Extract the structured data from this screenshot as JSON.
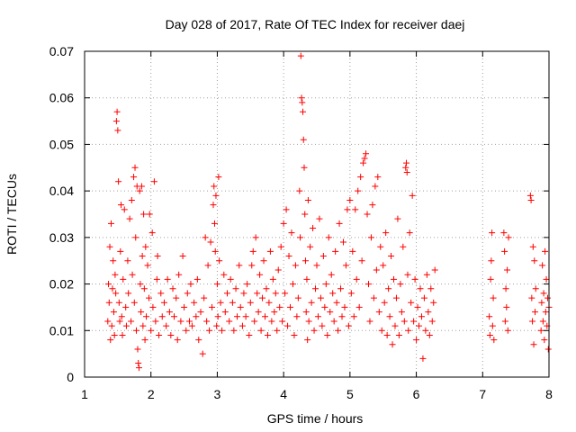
{
  "chart_data": {
    "type": "scatter",
    "title": "Day 028 of 2017, Rate Of TEC Index for receiver daej",
    "xlabel": "GPS time / hours",
    "ylabel": "ROTI / TECUs",
    "xlim": [
      1,
      8
    ],
    "ylim": [
      0,
      0.07
    ],
    "x_ticks": [
      "1",
      "2",
      "3",
      "4",
      "5",
      "6",
      "7",
      "8"
    ],
    "y_ticks": [
      "0",
      "0.01",
      "0.02",
      "0.03",
      "0.04",
      "0.05",
      "0.06",
      "0.07"
    ],
    "grid": true,
    "marker": "+",
    "color": "#ff0000",
    "series": [
      {
        "points": [
          [
            1.35,
            0.012
          ],
          [
            1.36,
            0.02
          ],
          [
            1.37,
            0.016
          ],
          [
            1.38,
            0.028
          ],
          [
            1.39,
            0.008
          ],
          [
            1.4,
            0.033
          ],
          [
            1.41,
            0.011
          ],
          [
            1.42,
            0.019
          ],
          [
            1.43,
            0.025
          ],
          [
            1.44,
            0.014
          ],
          [
            1.45,
            0.009
          ],
          [
            1.46,
            0.022
          ],
          [
            1.47,
            0.018
          ],
          [
            1.48,
            0.055
          ],
          [
            1.49,
            0.057
          ],
          [
            1.5,
            0.053
          ],
          [
            1.51,
            0.042
          ],
          [
            1.52,
            0.016
          ],
          [
            1.53,
            0.012
          ],
          [
            1.54,
            0.027
          ],
          [
            1.55,
            0.037
          ],
          [
            1.56,
            0.013
          ],
          [
            1.57,
            0.009
          ],
          [
            1.58,
            0.021
          ],
          [
            1.6,
            0.036
          ],
          [
            1.62,
            0.015
          ],
          [
            1.63,
            0.011
          ],
          [
            1.65,
            0.025
          ],
          [
            1.66,
            0.018
          ],
          [
            1.68,
            0.034
          ],
          [
            1.7,
            0.012
          ],
          [
            1.71,
            0.038
          ],
          [
            1.72,
            0.022
          ],
          [
            1.74,
            0.043
          ],
          [
            1.75,
            0.016
          ],
          [
            1.76,
            0.045
          ],
          [
            1.77,
            0.03
          ],
          [
            1.78,
            0.01
          ],
          [
            1.79,
            0.041
          ],
          [
            1.8,
            0.006
          ],
          [
            1.81,
            0.003
          ],
          [
            1.82,
            0.002
          ],
          [
            1.83,
            0.04
          ],
          [
            1.84,
            0.02
          ],
          [
            1.85,
            0.014
          ],
          [
            1.86,
            0.041
          ],
          [
            1.87,
            0.026
          ],
          [
            1.88,
            0.011
          ],
          [
            1.89,
            0.035
          ],
          [
            1.9,
            0.019
          ],
          [
            1.91,
            0.008
          ],
          [
            1.92,
            0.028
          ],
          [
            1.93,
            0.013
          ],
          [
            1.95,
            0.024
          ],
          [
            1.97,
            0.017
          ],
          [
            1.98,
            0.035
          ],
          [
            2.0,
            0.01
          ],
          [
            2.02,
            0.031
          ],
          [
            2.03,
            0.015
          ],
          [
            2.05,
            0.042
          ],
          [
            2.07,
            0.012
          ],
          [
            2.09,
            0.021
          ],
          [
            2.1,
            0.026
          ],
          [
            2.12,
            0.009
          ],
          [
            2.15,
            0.018
          ],
          [
            2.17,
            0.013
          ],
          [
            2.2,
            0.016
          ],
          [
            2.23,
            0.011
          ],
          [
            2.25,
            0.021
          ],
          [
            2.28,
            0.014
          ],
          [
            2.3,
            0.009
          ],
          [
            2.33,
            0.019
          ],
          [
            2.35,
            0.013
          ],
          [
            2.38,
            0.017
          ],
          [
            2.4,
            0.008
          ],
          [
            2.42,
            0.022
          ],
          [
            2.45,
            0.012
          ],
          [
            2.48,
            0.026
          ],
          [
            2.5,
            0.015
          ],
          [
            2.53,
            0.01
          ],
          [
            2.55,
            0.018
          ],
          [
            2.58,
            0.012
          ],
          [
            2.6,
            0.02
          ],
          [
            2.62,
            0.011
          ],
          [
            2.65,
            0.016
          ],
          [
            2.68,
            0.013
          ],
          [
            2.7,
            0.021
          ],
          [
            2.72,
            0.008
          ],
          [
            2.75,
            0.014
          ],
          [
            2.78,
            0.005
          ],
          [
            2.8,
            0.017
          ],
          [
            2.82,
            0.03
          ],
          [
            2.84,
            0.012
          ],
          [
            2.86,
            0.024
          ],
          [
            2.88,
            0.01
          ],
          [
            2.9,
            0.029
          ],
          [
            2.92,
            0.015
          ],
          [
            2.94,
            0.037
          ],
          [
            2.95,
            0.041
          ],
          [
            2.96,
            0.033
          ],
          [
            2.97,
            0.027
          ],
          [
            2.98,
            0.039
          ],
          [
            2.99,
            0.011
          ],
          [
            3.0,
            0.02
          ],
          [
            3.01,
            0.013
          ],
          [
            3.02,
            0.043
          ],
          [
            3.03,
            0.025
          ],
          [
            3.05,
            0.016
          ],
          [
            3.07,
            0.01
          ],
          [
            3.1,
            0.022
          ],
          [
            3.12,
            0.014
          ],
          [
            3.15,
            0.018
          ],
          [
            3.18,
            0.012
          ],
          [
            3.2,
            0.021
          ],
          [
            3.23,
            0.016
          ],
          [
            3.25,
            0.01
          ],
          [
            3.28,
            0.019
          ],
          [
            3.3,
            0.013
          ],
          [
            3.33,
            0.024
          ],
          [
            3.35,
            0.015
          ],
          [
            3.38,
            0.011
          ],
          [
            3.4,
            0.018
          ],
          [
            3.43,
            0.013
          ],
          [
            3.45,
            0.02
          ],
          [
            3.48,
            0.009
          ],
          [
            3.5,
            0.016
          ],
          [
            3.52,
            0.024
          ],
          [
            3.54,
            0.027
          ],
          [
            3.56,
            0.012
          ],
          [
            3.58,
            0.03
          ],
          [
            3.6,
            0.018
          ],
          [
            3.62,
            0.014
          ],
          [
            3.64,
            0.022
          ],
          [
            3.66,
            0.01
          ],
          [
            3.68,
            0.017
          ],
          [
            3.7,
            0.025
          ],
          [
            3.72,
            0.013
          ],
          [
            3.74,
            0.019
          ],
          [
            3.76,
            0.009
          ],
          [
            3.78,
            0.016
          ],
          [
            3.8,
            0.027
          ],
          [
            3.82,
            0.012
          ],
          [
            3.84,
            0.021
          ],
          [
            3.86,
            0.014
          ],
          [
            3.88,
            0.018
          ],
          [
            3.9,
            0.01
          ],
          [
            3.92,
            0.023
          ],
          [
            3.94,
            0.015
          ],
          [
            3.96,
            0.028
          ],
          [
            3.98,
            0.012
          ],
          [
            4.0,
            0.033
          ],
          [
            4.02,
            0.018
          ],
          [
            4.04,
            0.036
          ],
          [
            4.06,
            0.011
          ],
          [
            4.08,
            0.026
          ],
          [
            4.1,
            0.015
          ],
          [
            4.12,
            0.031
          ],
          [
            4.14,
            0.02
          ],
          [
            4.16,
            0.009
          ],
          [
            4.18,
            0.024
          ],
          [
            4.2,
            0.013
          ],
          [
            4.22,
            0.017
          ],
          [
            4.24,
            0.04
          ],
          [
            4.25,
            0.03
          ],
          [
            4.26,
            0.069
          ],
          [
            4.27,
            0.06
          ],
          [
            4.28,
            0.059
          ],
          [
            4.29,
            0.057
          ],
          [
            4.3,
            0.051
          ],
          [
            4.31,
            0.045
          ],
          [
            4.32,
            0.035
          ],
          [
            4.33,
            0.025
          ],
          [
            4.34,
            0.014
          ],
          [
            4.35,
            0.021
          ],
          [
            4.36,
            0.008
          ],
          [
            4.37,
            0.038
          ],
          [
            4.38,
            0.012
          ],
          [
            4.4,
            0.028
          ],
          [
            4.42,
            0.016
          ],
          [
            4.44,
            0.032
          ],
          [
            4.46,
            0.01
          ],
          [
            4.48,
            0.019
          ],
          [
            4.5,
            0.024
          ],
          [
            4.52,
            0.013
          ],
          [
            4.54,
            0.034
          ],
          [
            4.56,
            0.017
          ],
          [
            4.58,
            0.011
          ],
          [
            4.6,
            0.026
          ],
          [
            4.62,
            0.015
          ],
          [
            4.64,
            0.02
          ],
          [
            4.66,
            0.009
          ],
          [
            4.68,
            0.03
          ],
          [
            4.7,
            0.014
          ],
          [
            4.72,
            0.022
          ],
          [
            4.74,
            0.018
          ],
          [
            4.76,
            0.012
          ],
          [
            4.78,
            0.027
          ],
          [
            4.8,
            0.016
          ],
          [
            4.82,
            0.01
          ],
          [
            4.84,
            0.033
          ],
          [
            4.86,
            0.019
          ],
          [
            4.88,
            0.013
          ],
          [
            4.9,
            0.029
          ],
          [
            4.92,
            0.015
          ],
          [
            4.94,
            0.024
          ],
          [
            4.96,
            0.036
          ],
          [
            4.98,
            0.011
          ],
          [
            5.0,
            0.038
          ],
          [
            5.02,
            0.018
          ],
          [
            5.04,
            0.027
          ],
          [
            5.06,
            0.013
          ],
          [
            5.08,
            0.036
          ],
          [
            5.1,
            0.021
          ],
          [
            5.12,
            0.04
          ],
          [
            5.14,
            0.015
          ],
          [
            5.16,
            0.043
          ],
          [
            5.18,
            0.025
          ],
          [
            5.2,
            0.046
          ],
          [
            5.22,
            0.047
          ],
          [
            5.24,
            0.048
          ],
          [
            5.26,
            0.035
          ],
          [
            5.28,
            0.02
          ],
          [
            5.3,
            0.012
          ],
          [
            5.32,
            0.03
          ],
          [
            5.34,
            0.037
          ],
          [
            5.36,
            0.017
          ],
          [
            5.38,
            0.041
          ],
          [
            5.4,
            0.023
          ],
          [
            5.42,
            0.043
          ],
          [
            5.44,
            0.014
          ],
          [
            5.46,
            0.028
          ],
          [
            5.48,
            0.01
          ],
          [
            5.5,
            0.024
          ],
          [
            5.52,
            0.016
          ],
          [
            5.54,
            0.031
          ],
          [
            5.56,
            0.009
          ],
          [
            5.58,
            0.019
          ],
          [
            5.6,
            0.013
          ],
          [
            5.62,
            0.026
          ],
          [
            5.64,
            0.007
          ],
          [
            5.66,
            0.021
          ],
          [
            5.68,
            0.011
          ],
          [
            5.7,
            0.017
          ],
          [
            5.72,
            0.034
          ],
          [
            5.74,
            0.009
          ],
          [
            5.76,
            0.02
          ],
          [
            5.78,
            0.014
          ],
          [
            5.8,
            0.028
          ],
          [
            5.82,
            0.012
          ],
          [
            5.84,
            0.045
          ],
          [
            5.85,
            0.046
          ],
          [
            5.86,
            0.044
          ],
          [
            5.87,
            0.022
          ],
          [
            5.88,
            0.01
          ],
          [
            5.9,
            0.031
          ],
          [
            5.92,
            0.016
          ],
          [
            5.94,
            0.039
          ],
          [
            5.96,
            0.012
          ],
          [
            5.98,
            0.021
          ],
          [
            6.0,
            0.008
          ],
          [
            6.02,
            0.015
          ],
          [
            6.04,
            0.011
          ],
          [
            6.06,
            0.019
          ],
          [
            6.08,
            0.013
          ],
          [
            6.1,
            0.004
          ],
          [
            6.12,
            0.017
          ],
          [
            6.14,
            0.01
          ],
          [
            6.16,
            0.022
          ],
          [
            6.18,
            0.014
          ],
          [
            6.2,
            0.009
          ],
          [
            6.22,
            0.019
          ],
          [
            6.24,
            0.012
          ],
          [
            6.26,
            0.016
          ],
          [
            6.28,
            0.023
          ],
          [
            7.1,
            0.013
          ],
          [
            7.11,
            0.009
          ],
          [
            7.12,
            0.021
          ],
          [
            7.13,
            0.025
          ],
          [
            7.14,
            0.031
          ],
          [
            7.15,
            0.011
          ],
          [
            7.16,
            0.017
          ],
          [
            7.17,
            0.008
          ],
          [
            7.32,
            0.031
          ],
          [
            7.33,
            0.027
          ],
          [
            7.34,
            0.012
          ],
          [
            7.35,
            0.019
          ],
          [
            7.36,
            0.015
          ],
          [
            7.37,
            0.023
          ],
          [
            7.38,
            0.01
          ],
          [
            7.39,
            0.03
          ],
          [
            7.72,
            0.039
          ],
          [
            7.73,
            0.038
          ],
          [
            7.74,
            0.017
          ],
          [
            7.75,
            0.012
          ],
          [
            7.76,
            0.028
          ],
          [
            7.77,
            0.007
          ],
          [
            7.78,
            0.025
          ],
          [
            7.79,
            0.014
          ],
          [
            7.8,
            0.019
          ],
          [
            7.88,
            0.01
          ],
          [
            7.89,
            0.016
          ],
          [
            7.9,
            0.024
          ],
          [
            7.91,
            0.012
          ],
          [
            7.92,
            0.018
          ],
          [
            7.93,
            0.008
          ],
          [
            7.94,
            0.027
          ],
          [
            7.95,
            0.014
          ],
          [
            7.96,
            0.021
          ],
          [
            7.97,
            0.011
          ],
          [
            7.98,
            0.017
          ],
          [
            7.99,
            0.006
          ],
          [
            8.0,
            0.015
          ]
        ]
      }
    ]
  }
}
